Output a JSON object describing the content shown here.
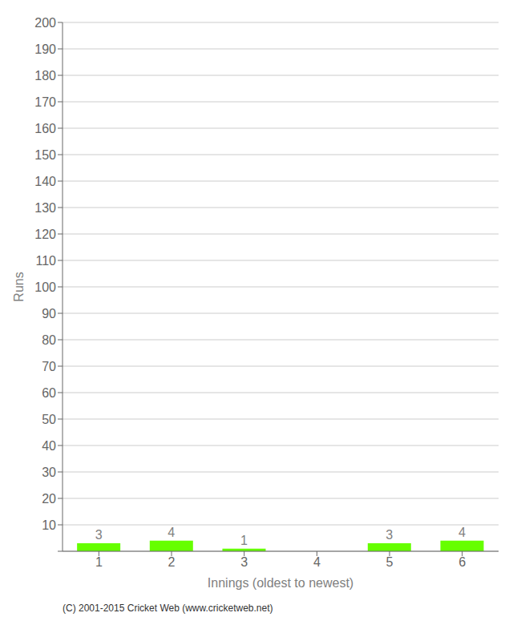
{
  "chart_data": {
    "type": "bar",
    "categories": [
      "1",
      "2",
      "3",
      "4",
      "5",
      "6"
    ],
    "values": [
      3,
      4,
      1,
      0,
      3,
      4
    ],
    "color": "#66ff00",
    "xlabel": "Innings (oldest to newest)",
    "ylabel": "Runs",
    "ylim": [
      0,
      200
    ],
    "yticks": [
      {
        "value": 0,
        "label": null
      },
      10,
      20,
      30,
      40,
      50,
      60,
      70,
      80,
      90,
      100,
      110,
      120,
      130,
      140,
      150,
      160,
      170,
      180,
      190,
      200
    ],
    "grid": true,
    "data_labels": true,
    "annotations": [
      "(C) 2001-2015 Cricket Web (www.cricketweb.net)"
    ]
  }
}
